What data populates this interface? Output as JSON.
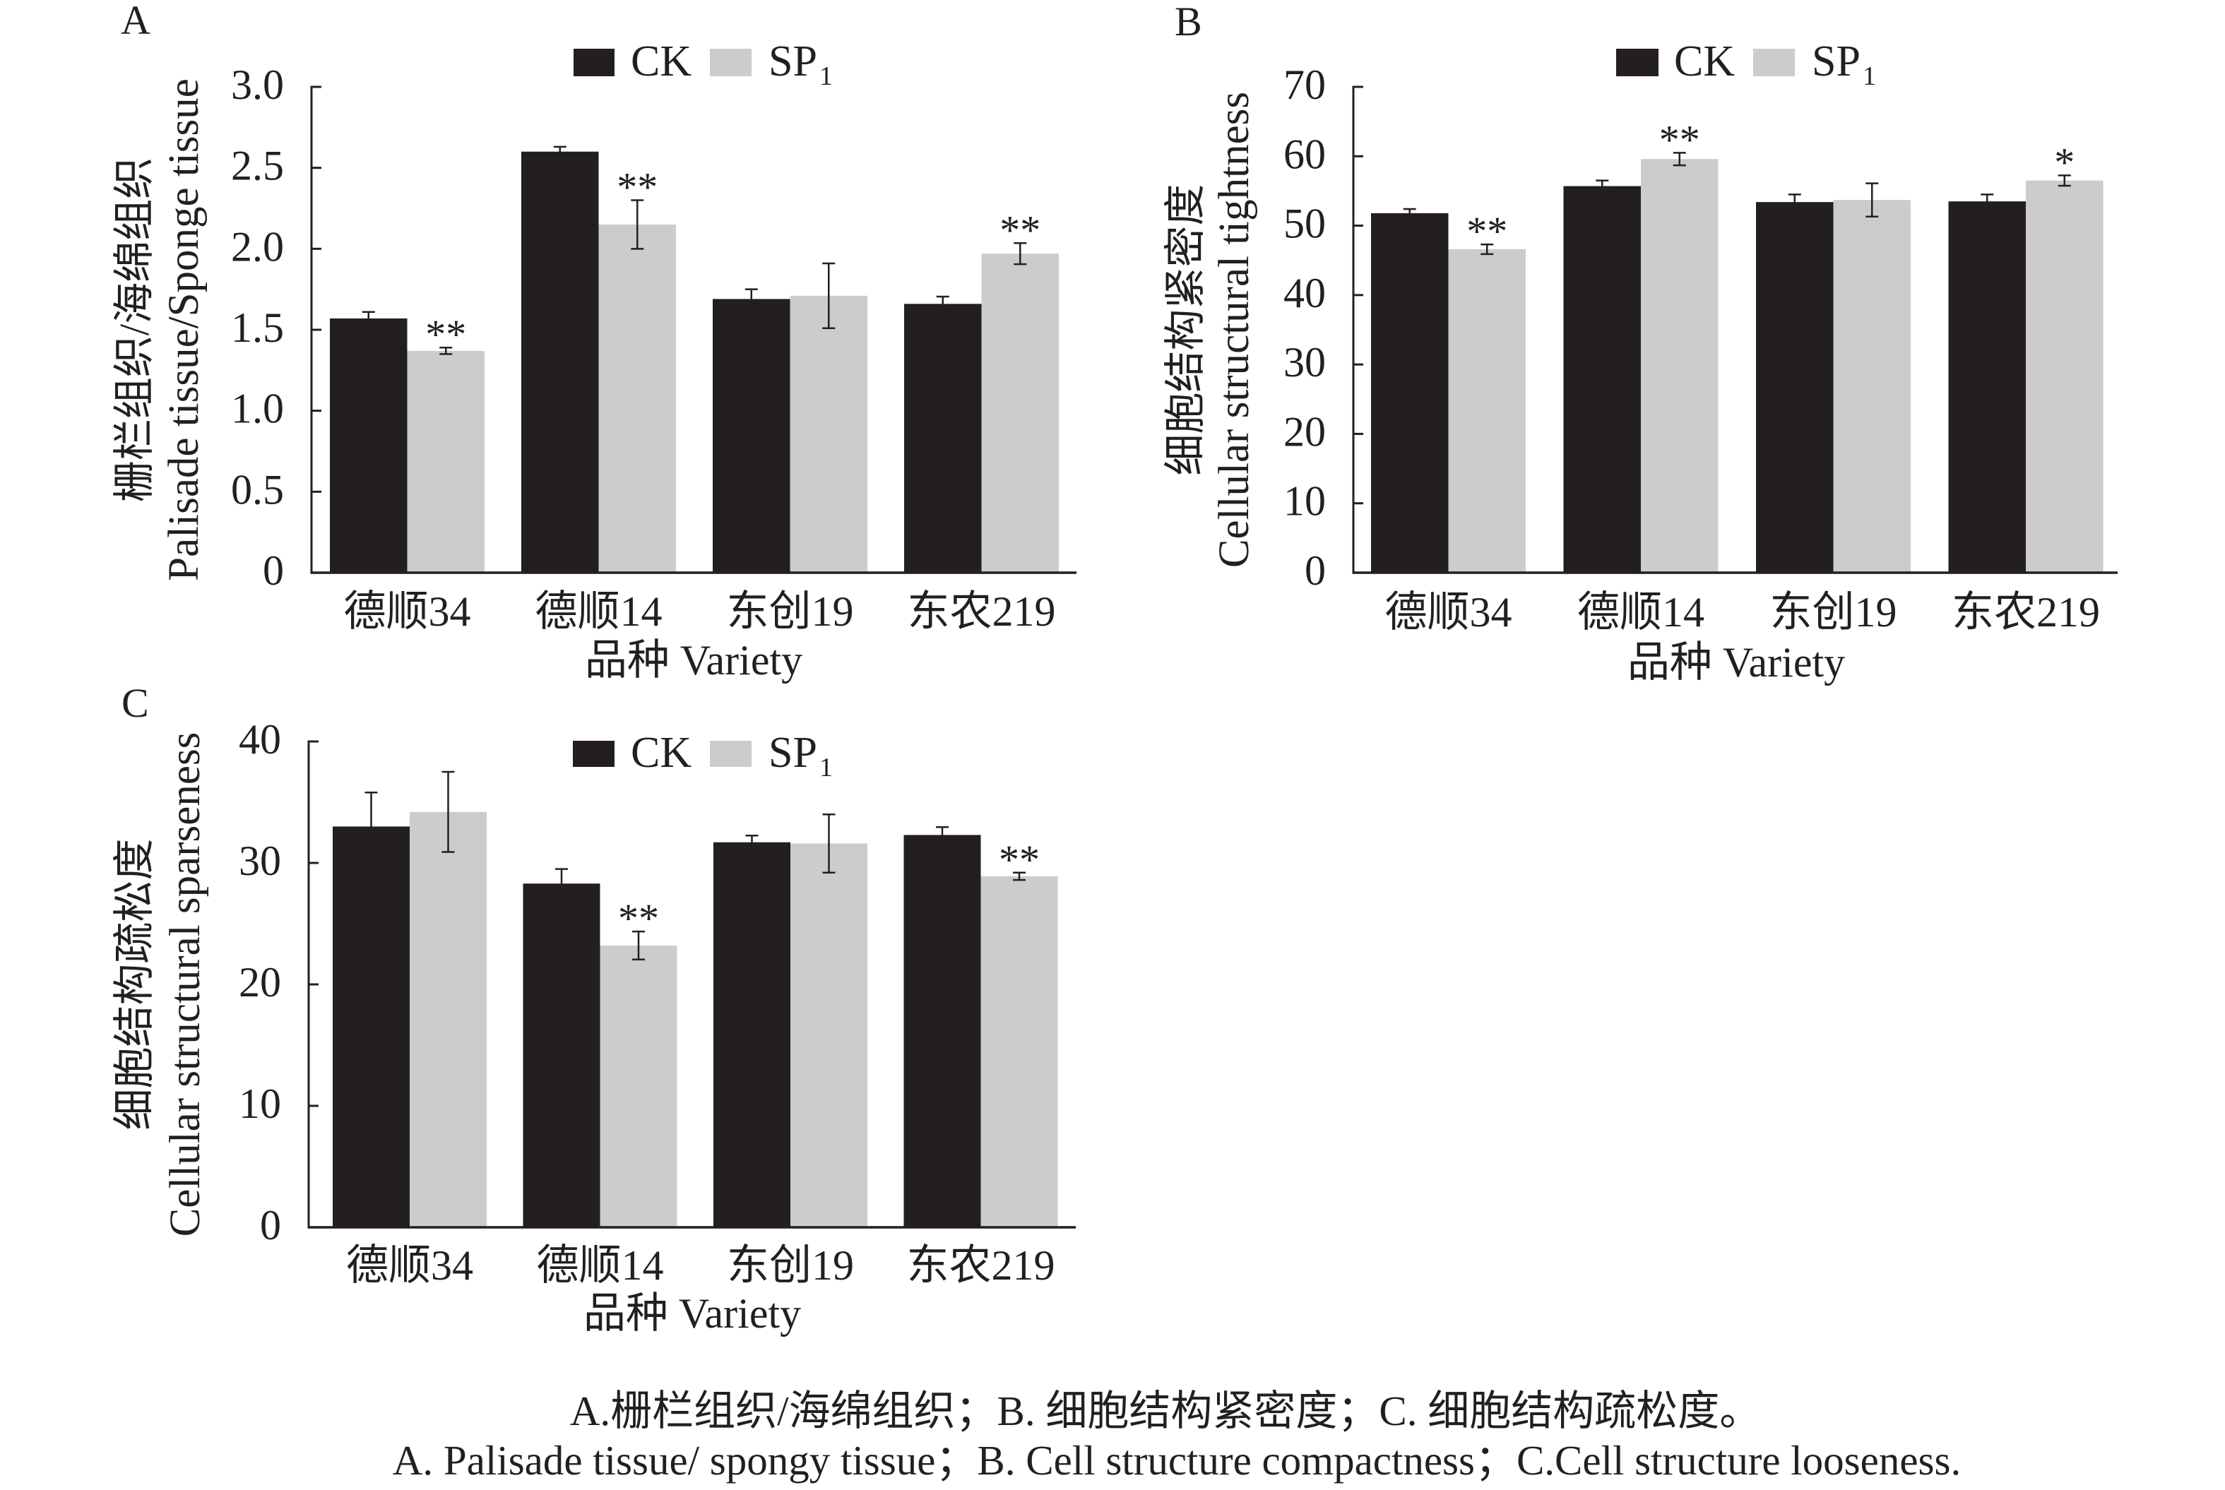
{
  "chart_data": [
    {
      "type": "bar",
      "panel": "A",
      "categories": [
        "德顺34",
        "德顺14",
        "东创19",
        "东农219"
      ],
      "xlabel": "品种 Variety",
      "ylabel": [
        "栅栏组织/海绵组织",
        "Palisade tissue/Sponge tissue"
      ],
      "ylim": [
        0,
        3.0
      ],
      "yticks": [
        0,
        0.5,
        1.0,
        1.5,
        2.0,
        2.5,
        3.0
      ],
      "ytick_labels": [
        "0",
        "0.5",
        "1.0",
        "1.5",
        "2.0",
        "2.5",
        "3.0"
      ],
      "grid": false,
      "legend_position": "top",
      "series": [
        {
          "legend": "CK",
          "color": "#231f20",
          "values": [
            1.57,
            2.6,
            1.69,
            1.66
          ],
          "errors": [
            0.04,
            0.03,
            0.06,
            0.045
          ],
          "significance": [
            "",
            "",
            "",
            ""
          ]
        },
        {
          "legend": "SP",
          "legend_sub": "1",
          "color": "#cccccc",
          "values": [
            1.37,
            2.15,
            1.71,
            1.97
          ],
          "errors": [
            0.02,
            0.15,
            0.2,
            0.065
          ],
          "significance": [
            "**",
            "**",
            "",
            "**"
          ]
        }
      ]
    },
    {
      "type": "bar",
      "panel": "B",
      "categories": [
        "德顺34",
        "德顺14",
        "东创19",
        "东农219"
      ],
      "xlabel": "品种 Variety",
      "ylabel": [
        "细胞结构紧密度",
        "Cellular structural tightness"
      ],
      "ylim": [
        0,
        70
      ],
      "yticks": [
        0,
        10,
        20,
        30,
        40,
        50,
        60,
        70
      ],
      "ytick_labels": [
        "0",
        "10",
        "20",
        "30",
        "40",
        "50",
        "60",
        "70"
      ],
      "grid": false,
      "legend_position": "top",
      "series": [
        {
          "legend": "CK",
          "color": "#231f20",
          "values": [
            51.8,
            55.7,
            53.4,
            53.5
          ],
          "errors": [
            0.6,
            0.8,
            1.1,
            1.0
          ],
          "significance": [
            "",
            "",
            "",
            ""
          ]
        },
        {
          "legend": "SP",
          "legend_sub": "1",
          "color": "#cccccc",
          "values": [
            46.6,
            59.6,
            53.7,
            56.5
          ],
          "errors": [
            0.7,
            0.9,
            2.4,
            0.75
          ],
          "significance": [
            "**",
            "**",
            "",
            "*"
          ]
        }
      ]
    },
    {
      "type": "bar",
      "panel": "C",
      "categories": [
        "德顺34",
        "德顺14",
        "东创19",
        "东农219"
      ],
      "xlabel": "品种 Variety",
      "ylabel": [
        "细胞结构疏松度",
        "Cellular structural sparseness"
      ],
      "ylim": [
        0,
        40
      ],
      "yticks": [
        0,
        10,
        20,
        30,
        40
      ],
      "ytick_labels": [
        "0",
        "10",
        "20",
        "30",
        "40"
      ],
      "grid": false,
      "legend_position": "top",
      "series": [
        {
          "legend": "CK",
          "color": "#231f20",
          "values": [
            33.0,
            28.3,
            31.7,
            32.3
          ],
          "errors": [
            2.8,
            1.2,
            0.55,
            0.65
          ],
          "significance": [
            "",
            "",
            "",
            ""
          ]
        },
        {
          "legend": "SP",
          "legend_sub": "1",
          "color": "#cccccc",
          "values": [
            34.2,
            23.2,
            31.6,
            28.9
          ],
          "errors": [
            3.3,
            1.15,
            2.4,
            0.3
          ],
          "significance": [
            "",
            "**",
            "",
            "**"
          ]
        }
      ]
    }
  ],
  "caption": {
    "line1": "A.栅栏组织/海绵组织；B. 细胞结构紧密度；C. 细胞结构疏松度。",
    "line2": "A. Palisade tissue/ spongy tissue；B. Cell structure compactness；C.Cell structure looseness."
  }
}
